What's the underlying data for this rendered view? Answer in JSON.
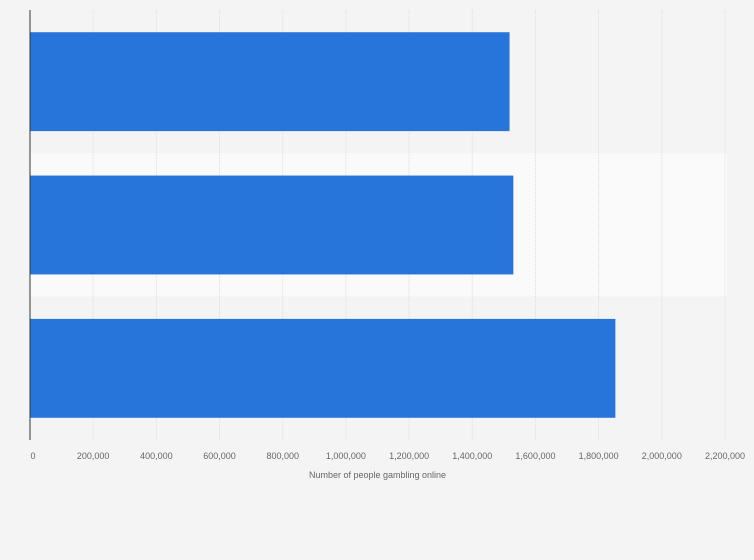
{
  "chart_data": {
    "type": "bar",
    "orientation": "horizontal",
    "categories": [
      "",
      "",
      ""
    ],
    "values": [
      1518000,
      1530000,
      1853000
    ],
    "title": "",
    "xlabel": "Number of people gambling online",
    "ylabel": "",
    "xlim": [
      0,
      2200000
    ],
    "xticks": [
      0,
      200000,
      400000,
      600000,
      800000,
      1000000,
      1200000,
      1400000,
      1600000,
      1800000,
      2000000,
      2200000
    ],
    "xtick_labels": [
      "0",
      "200,000",
      "400,000",
      "600,000",
      "800,000",
      "1,000,000",
      "1,200,000",
      "1,400,000",
      "1,600,000",
      "1,800,000",
      "2,000,000",
      "2,200,000"
    ],
    "grid": true,
    "legend": "none",
    "colors": {
      "bar": "#2775db",
      "background": "#f4f4f4",
      "band_alt": "#fafafa",
      "grid": "#dddddd",
      "axis": "#333333",
      "text": "#666666"
    }
  }
}
